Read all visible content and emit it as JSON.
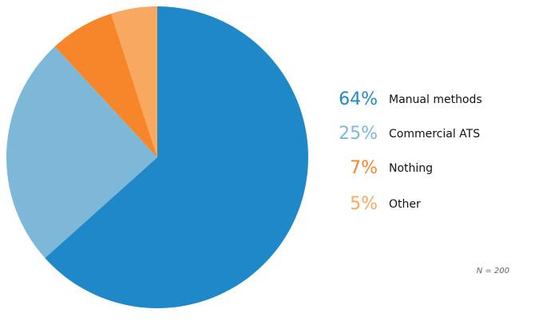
{
  "chart_data": {
    "type": "pie",
    "categories": [
      "Manual methods",
      "Commercial ATS",
      "Nothing",
      "Other"
    ],
    "values": [
      64,
      25,
      7,
      5
    ],
    "value_labels": [
      "64%",
      "25%",
      "7%",
      "5%"
    ],
    "colors": [
      "#1f88c8",
      "#7db8d9",
      "#f7862a",
      "#f9a862"
    ],
    "note": "N = 200"
  }
}
